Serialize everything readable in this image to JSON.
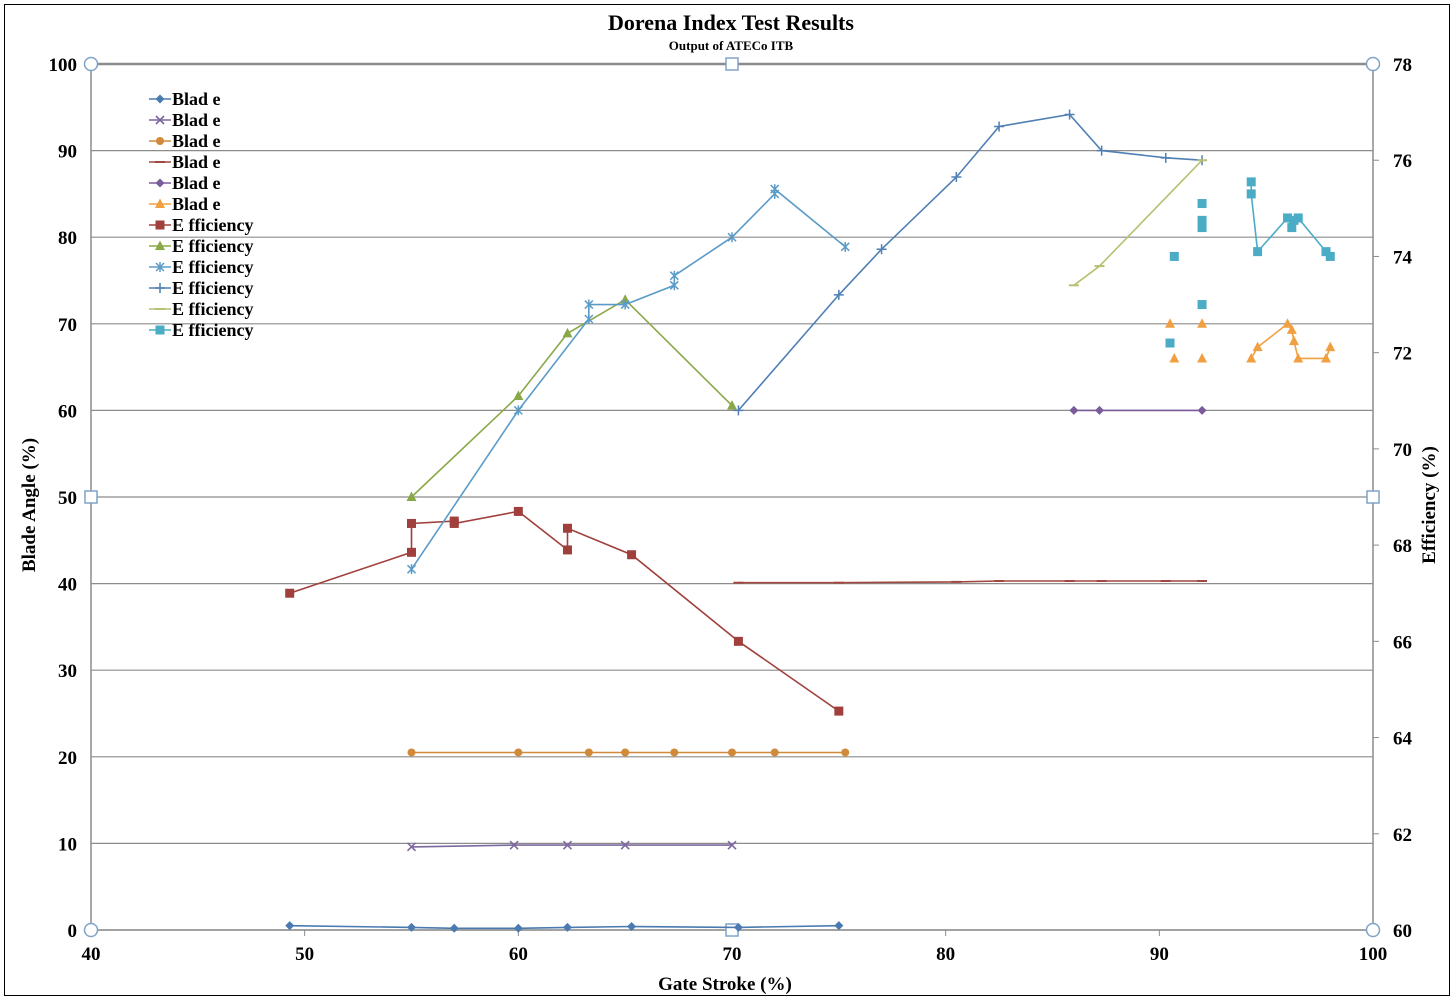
{
  "chart_data": {
    "type": "line",
    "title": "Dorena Index Test Results",
    "subtitle": "Output of ATECo ITB",
    "xlabel": "Gate Stroke (%)",
    "ylabel": "Blade Angle (%)",
    "y2label": "Efficiency (%)",
    "xlim": [
      40,
      100
    ],
    "ylim": [
      0,
      100
    ],
    "y2lim": [
      60,
      78
    ],
    "x_ticks": [
      "40",
      "50",
      "60",
      "70",
      "80",
      "90",
      "100"
    ],
    "y_ticks": [
      "0",
      "10",
      "20",
      "30",
      "40",
      "50",
      "60",
      "70",
      "80",
      "90",
      "100"
    ],
    "y2_ticks": [
      "60",
      "62",
      "64",
      "66",
      "68",
      "70",
      "72",
      "74",
      "76",
      "78"
    ],
    "grid": "horizontal",
    "legend_position": "top-left",
    "series": [
      {
        "name": "Blad e",
        "axis": "left",
        "color": "#4a7ab0",
        "marker": "diamond",
        "line": true,
        "x": [
          49.3,
          55,
          57,
          60,
          62.3,
          65.3,
          70.3,
          75
        ],
        "y": [
          0.5,
          0.3,
          0.2,
          0.2,
          0.3,
          0.4,
          0.3,
          0.5
        ]
      },
      {
        "name": "Blad e",
        "axis": "left",
        "color": "#7b69a0",
        "marker": "x",
        "line": true,
        "x": [
          55,
          59.8,
          62.3,
          65,
          70
        ],
        "y": [
          9.6,
          9.8,
          9.8,
          9.8,
          9.8
        ]
      },
      {
        "name": "Blad e",
        "axis": "left",
        "color": "#d08a3a",
        "marker": "circle",
        "line": true,
        "x": [
          55,
          60,
          63.3,
          65,
          67.3,
          70,
          72,
          75.3
        ],
        "y": [
          20.5,
          20.5,
          20.5,
          20.5,
          20.5,
          20.5,
          20.5,
          20.5
        ]
      },
      {
        "name": "Blad e",
        "axis": "left",
        "color": "#a0473f",
        "marker": "dash",
        "line": true,
        "x": [
          70.3,
          75,
          80.5,
          82.5,
          85.8,
          87.3,
          90.3,
          92
        ],
        "y": [
          40.1,
          40.1,
          40.2,
          40.3,
          40.3,
          40.3,
          40.3,
          40.3
        ]
      },
      {
        "name": "Blad e",
        "axis": "left",
        "color": "#7b5c9a",
        "marker": "diamond",
        "line": true,
        "x": [
          86,
          87.2,
          92
        ],
        "y": [
          60,
          60,
          60
        ]
      },
      {
        "name": "Blad e",
        "axis": "left",
        "color": "#f0a040",
        "marker": "triangle",
        "line": false,
        "x": [
          90.5,
          90.7,
          92,
          92,
          94.3,
          94.6,
          96,
          96.2,
          96.3,
          96.5,
          97.8,
          98
        ],
        "y": [
          70,
          66,
          70,
          66,
          66,
          67.3,
          70,
          69.3,
          68,
          66,
          66,
          67.3
        ]
      },
      {
        "name": "E fficiency",
        "axis": "right",
        "color": "#a0403c",
        "marker": "square",
        "line": true,
        "x": [
          49.3,
          55,
          55,
          57,
          57,
          60,
          62.3,
          62.3,
          65.3,
          70.3,
          75
        ],
        "y": [
          67.0,
          67.85,
          68.45,
          68.5,
          68.45,
          68.7,
          67.9,
          68.35,
          67.8,
          66.0,
          64.55
        ]
      },
      {
        "name": "E fficiency",
        "axis": "right",
        "color": "#8aa848",
        "marker": "triangle",
        "line": true,
        "x": [
          55,
          60,
          62.3,
          65,
          70
        ],
        "y": [
          69.0,
          71.1,
          72.4,
          73.1,
          70.9
        ]
      },
      {
        "name": "E fficiency",
        "axis": "right",
        "color": "#5b9bc8",
        "marker": "star",
        "line": true,
        "x": [
          55,
          60,
          63.3,
          63.3,
          65,
          67.3,
          67.3,
          70,
          72,
          72,
          75.3
        ],
        "y": [
          67.5,
          70.8,
          72.7,
          73.0,
          73.0,
          73.4,
          73.6,
          74.4,
          75.3,
          75.4,
          74.2
        ]
      },
      {
        "name": "E fficiency",
        "axis": "right",
        "color": "#4f7fb5",
        "marker": "plus",
        "line": true,
        "x": [
          70.3,
          75,
          77,
          80.5,
          82.5,
          85.8,
          87.3,
          90.3,
          92
        ],
        "y": [
          70.8,
          73.2,
          74.15,
          75.65,
          76.7,
          76.95,
          76.2,
          76.05,
          76.0
        ]
      },
      {
        "name": "E fficiency",
        "axis": "right",
        "color": "#b8c070",
        "marker": "dash",
        "line": true,
        "x": [
          86,
          87.2,
          92
        ],
        "y": [
          73.4,
          73.8,
          76.0
        ]
      },
      {
        "name": "E fficiency",
        "axis": "right",
        "color": "#4bacc6",
        "marker": "square",
        "line": false,
        "x": [
          90.5,
          90.7,
          92,
          92,
          92,
          92,
          94.3,
          94.3,
          94.6,
          96,
          96.2,
          96.3,
          96.5,
          97.8,
          98
        ],
        "y": [
          72.2,
          74.0,
          75.1,
          74.75,
          74.6,
          73.0,
          75.55,
          75.3,
          74.1,
          74.8,
          74.6,
          74.75,
          74.8,
          74.1,
          74.0
        ]
      }
    ]
  }
}
